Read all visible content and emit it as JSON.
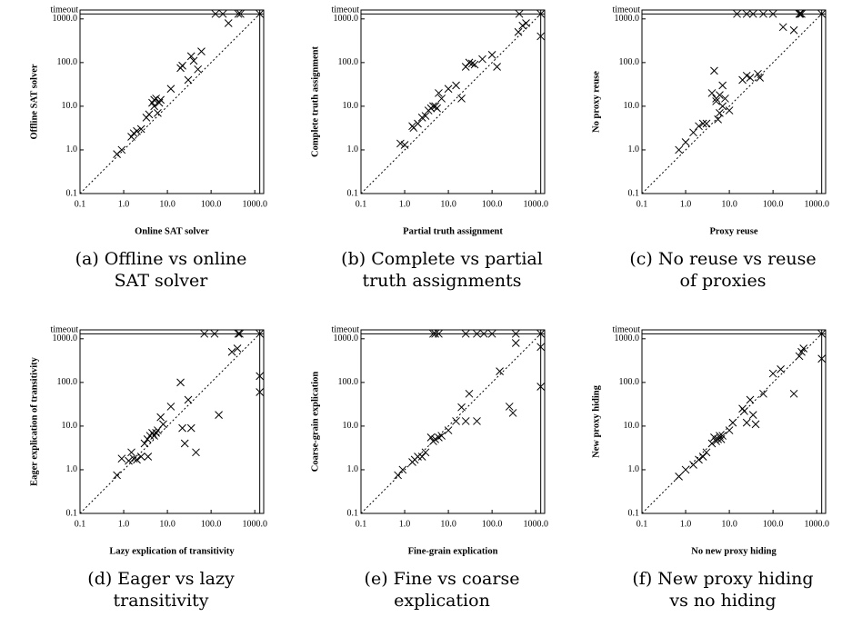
{
  "chart_data": [
    {
      "type": "scatter",
      "xscale": "log",
      "yscale": "log",
      "diagonal": true,
      "marker": "x",
      "color": "#000000",
      "x_label": "Online SAT solver",
      "y_label": "Offline SAT solver",
      "caption": [
        "(a) Offline vs online",
        "SAT solver"
      ],
      "xlim": [
        0.1,
        1600
      ],
      "ylim": [
        0.1,
        1600
      ],
      "xticks": [
        0.1,
        {
          "value": 1,
          "label": "1.0"
        },
        {
          "value": 10,
          "label": "10.0"
        },
        {
          "value": 100,
          "label": "100.0"
        },
        {
          "value": 1000,
          "label": "1000.0"
        }
      ],
      "yticks": [
        0.1,
        {
          "value": 1,
          "label": "1.0"
        },
        {
          "value": 10,
          "label": "10.0"
        },
        {
          "value": 100,
          "label": "100.0"
        },
        {
          "value": 1000,
          "label": "1000.0"
        },
        {
          "value": 1300,
          "label": "timeout"
        }
      ],
      "x": [
        0.7,
        0.9,
        1.5,
        1.7,
        2,
        2.5,
        3.3,
        3.8,
        4.5,
        5,
        5.5,
        5,
        6,
        6.5,
        7,
        12,
        20,
        22,
        30,
        35,
        40,
        50,
        60,
        250,
        126,
        186,
        420,
        470,
        1300
      ],
      "values": [
        0.8,
        1.0,
        2.0,
        2.4,
        2.7,
        3.0,
        5.5,
        6.5,
        12,
        14,
        15,
        10,
        7,
        12,
        14,
        25,
        75,
        85,
        40,
        140,
        110,
        70,
        180,
        800,
        1300,
        1300,
        1300,
        1300,
        1300
      ]
    },
    {
      "type": "scatter",
      "xscale": "log",
      "yscale": "log",
      "diagonal": true,
      "marker": "x",
      "color": "#000000",
      "x_label": "Partial truth assignment",
      "y_label": "Complete truth assignment",
      "caption": [
        "(b) Complete vs partial",
        "truth assignments"
      ],
      "xlim": [
        0.1,
        1600
      ],
      "ylim": [
        0.1,
        1600
      ],
      "xticks": [
        0.1,
        {
          "value": 1,
          "label": "1.0"
        },
        {
          "value": 10,
          "label": "10.0"
        },
        {
          "value": 100,
          "label": "100.0"
        },
        {
          "value": 1000,
          "label": "1000.0"
        }
      ],
      "yticks": [
        0.1,
        {
          "value": 1,
          "label": "1.0"
        },
        {
          "value": 10,
          "label": "10.0"
        },
        {
          "value": 100,
          "label": "100.0"
        },
        {
          "value": 1000,
          "label": "1000.0"
        },
        {
          "value": 1300,
          "label": "timeout"
        }
      ],
      "x": [
        0.8,
        1.0,
        1.5,
        1.6,
        2,
        2.5,
        3,
        3.5,
        4,
        4.5,
        5,
        5.5,
        6,
        7,
        10,
        15,
        20,
        25,
        30,
        35,
        40,
        60,
        100,
        130,
        400,
        500,
        600,
        420,
        1300,
        1300
      ],
      "values": [
        1.4,
        1.3,
        3.5,
        3.2,
        4,
        5.5,
        6,
        8,
        9,
        10,
        10,
        9,
        20,
        15,
        25,
        30,
        15,
        80,
        100,
        95,
        90,
        120,
        150,
        80,
        500,
        700,
        800,
        1300,
        1300,
        400
      ]
    },
    {
      "type": "scatter",
      "xscale": "log",
      "yscale": "log",
      "diagonal": true,
      "marker": "x",
      "color": "#000000",
      "x_label": "Proxy reuse",
      "y_label": "No proxy reuse",
      "caption": [
        "(c) No reuse vs reuse",
        "of proxies"
      ],
      "xlim": [
        0.1,
        1600
      ],
      "ylim": [
        0.1,
        1600
      ],
      "xticks": [
        0.1,
        {
          "value": 1,
          "label": "1.0"
        },
        {
          "value": 10,
          "label": "10.0"
        },
        {
          "value": 100,
          "label": "100.0"
        },
        {
          "value": 1000,
          "label": "1000.0"
        }
      ],
      "yticks": [
        0.1,
        {
          "value": 1,
          "label": "1.0"
        },
        {
          "value": 10,
          "label": "10.0"
        },
        {
          "value": 100,
          "label": "100.0"
        },
        {
          "value": 1000,
          "label": "1000.0"
        },
        {
          "value": 1300,
          "label": "timeout"
        }
      ],
      "x": [
        0.7,
        1,
        1.5,
        2,
        2.5,
        3,
        4,
        4.5,
        5,
        5,
        6,
        7,
        7,
        8,
        5.5,
        6,
        10,
        25,
        30,
        45,
        50,
        20,
        300,
        170,
        15,
        25,
        35,
        60,
        100,
        400,
        420,
        450,
        1300
      ],
      "values": [
        1.0,
        1.5,
        2.5,
        3.5,
        4,
        4,
        20,
        65,
        15,
        13,
        18,
        10,
        30,
        15,
        5,
        7,
        8,
        50,
        45,
        55,
        45,
        40,
        550,
        650,
        1300,
        1300,
        1300,
        1300,
        1300,
        1300,
        1300,
        1300,
        1300
      ]
    },
    {
      "type": "scatter",
      "xscale": "log",
      "yscale": "log",
      "diagonal": true,
      "marker": "x",
      "color": "#000000",
      "x_label": "Lazy explication of transitivity",
      "y_label": "Eager explication of transitivity",
      "caption": [
        "(d) Eager vs lazy",
        "transitivity"
      ],
      "xlim": [
        0.1,
        1600
      ],
      "ylim": [
        0.1,
        1600
      ],
      "xticks": [
        0.1,
        {
          "value": 1,
          "label": "1.0"
        },
        {
          "value": 10,
          "label": "10.0"
        },
        {
          "value": 100,
          "label": "100.0"
        },
        {
          "value": 1000,
          "label": "1000.0"
        }
      ],
      "yticks": [
        0.1,
        {
          "value": 1,
          "label": "1.0"
        },
        {
          "value": 10,
          "label": "10.0"
        },
        {
          "value": 100,
          "label": "100.0"
        },
        {
          "value": 1000,
          "label": "1000.0"
        },
        {
          "value": 1300,
          "label": "timeout"
        }
      ],
      "x": [
        0.7,
        0.9,
        1.3,
        1.5,
        1.7,
        2,
        2.5,
        3,
        3.5,
        3.6,
        4,
        4.5,
        5,
        5.5,
        6,
        7,
        8,
        12,
        20,
        22,
        25,
        30,
        35,
        45,
        150,
        300,
        400,
        70,
        120,
        420,
        450,
        1300,
        1300,
        1300
      ],
      "values": [
        0.75,
        1.8,
        1.6,
        2.5,
        1.8,
        1.7,
        2,
        4,
        5,
        2,
        6,
        7,
        6,
        7,
        8,
        16,
        11,
        28,
        100,
        9,
        4,
        40,
        9,
        2.5,
        18,
        500,
        600,
        1300,
        1300,
        1300,
        1300,
        1300,
        140,
        60
      ]
    },
    {
      "type": "scatter",
      "xscale": "log",
      "yscale": "log",
      "diagonal": true,
      "marker": "x",
      "color": "#000000",
      "x_label": "Fine-grain explication",
      "y_label": "Coarse-grain explication",
      "caption": [
        "(e) Fine vs coarse",
        "explication"
      ],
      "xlim": [
        0.1,
        1600
      ],
      "ylim": [
        0.1,
        1600
      ],
      "xticks": [
        0.1,
        {
          "value": 1,
          "label": "1.0"
        },
        {
          "value": 10,
          "label": "10.0"
        },
        {
          "value": 100,
          "label": "100.0"
        },
        {
          "value": 1000,
          "label": "1000.0"
        }
      ],
      "yticks": [
        0.1,
        {
          "value": 1,
          "label": "1.0"
        },
        {
          "value": 10,
          "label": "10.0"
        },
        {
          "value": 100,
          "label": "100.0"
        },
        {
          "value": 1000,
          "label": "1000.0"
        },
        {
          "value": 1300,
          "label": "timeout"
        }
      ],
      "x": [
        0.7,
        0.9,
        1.5,
        1.7,
        2,
        2.5,
        3,
        4,
        4.5,
        5,
        6,
        7,
        10,
        15,
        20,
        25,
        30,
        45,
        150,
        250,
        300,
        350,
        4.5,
        5,
        6,
        25,
        45,
        65,
        100,
        350,
        1300,
        1300,
        1300
      ],
      "values": [
        0.75,
        1.0,
        1.5,
        1.7,
        2,
        2,
        2.5,
        5.5,
        4.5,
        5,
        5.5,
        6,
        8,
        13,
        27,
        13,
        55,
        13,
        180,
        28,
        20,
        800,
        1300,
        1300,
        1300,
        1300,
        1300,
        1300,
        1300,
        1300,
        1300,
        650,
        80
      ]
    },
    {
      "type": "scatter",
      "xscale": "log",
      "yscale": "log",
      "diagonal": true,
      "marker": "x",
      "color": "#000000",
      "x_label": "No new proxy hiding",
      "y_label": "New proxy hiding",
      "caption": [
        "(f) New proxy hiding",
        "vs no hiding"
      ],
      "xlim": [
        0.1,
        1600
      ],
      "ylim": [
        0.1,
        1600
      ],
      "xticks": [
        0.1,
        {
          "value": 1,
          "label": "1.0"
        },
        {
          "value": 10,
          "label": "10.0"
        },
        {
          "value": 100,
          "label": "100.0"
        },
        {
          "value": 1000,
          "label": "1000.0"
        }
      ],
      "yticks": [
        0.1,
        {
          "value": 1,
          "label": "1.0"
        },
        {
          "value": 10,
          "label": "10.0"
        },
        {
          "value": 100,
          "label": "100.0"
        },
        {
          "value": 1000,
          "label": "1000.0"
        },
        {
          "value": 1300,
          "label": "timeout"
        }
      ],
      "x": [
        0.7,
        1,
        1.5,
        2,
        2.5,
        3,
        4,
        4.5,
        5,
        5.5,
        6,
        6.5,
        7,
        10,
        12,
        20,
        22,
        25,
        30,
        35,
        40,
        60,
        100,
        150,
        300,
        400,
        450,
        500,
        1300,
        1300
      ],
      "values": [
        0.7,
        1,
        1.3,
        1.7,
        2,
        2.5,
        4,
        5.5,
        4.5,
        5,
        6,
        5,
        6,
        8,
        12,
        25,
        22,
        12,
        40,
        18,
        11,
        55,
        160,
        200,
        55,
        400,
        500,
        600,
        1300,
        350
      ]
    }
  ]
}
